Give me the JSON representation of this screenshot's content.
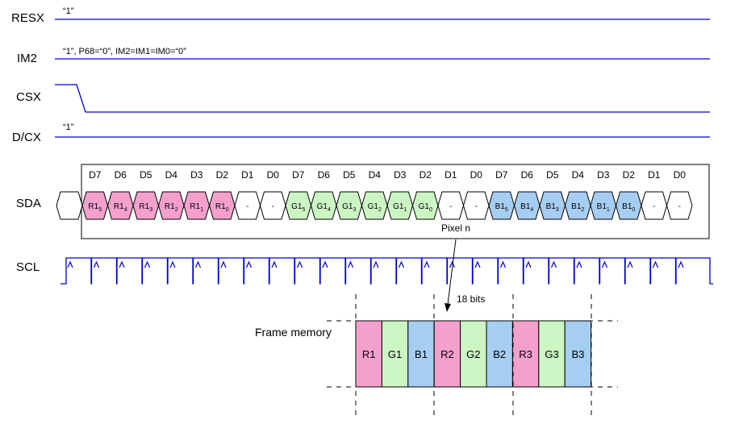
{
  "signals": {
    "resx": {
      "label": "RESX",
      "note": "“1”"
    },
    "im2": {
      "label": "IM2",
      "note": "“1”, P68=“0”, IM2=IM1=IM0=“0”"
    },
    "csx": {
      "label": "CSX"
    },
    "dcx": {
      "label": "D/CX",
      "note": "“1”"
    },
    "sda": {
      "label": "SDA"
    },
    "scl": {
      "label": "SCL"
    }
  },
  "bit_headers": [
    "D7",
    "D6",
    "D5",
    "D4",
    "D3",
    "D2",
    "D1",
    "D0",
    "D7",
    "D6",
    "D5",
    "D4",
    "D3",
    "D2",
    "D1",
    "D0",
    "D7",
    "D6",
    "D5",
    "D4",
    "D3",
    "D2",
    "D1",
    "D0"
  ],
  "sda_cells": [
    {
      "base": "R1",
      "sub": "5",
      "color": "#f4a0cc"
    },
    {
      "base": "R1",
      "sub": "4",
      "color": "#f4a0cc"
    },
    {
      "base": "R1",
      "sub": "3",
      "color": "#f4a0cc"
    },
    {
      "base": "R1",
      "sub": "2",
      "color": "#f4a0cc"
    },
    {
      "base": "R1",
      "sub": "1",
      "color": "#f4a0cc"
    },
    {
      "base": "R1",
      "sub": "0",
      "color": "#f4a0cc"
    },
    {
      "base": "-",
      "sub": "",
      "color": "#ffffff"
    },
    {
      "base": "-",
      "sub": "",
      "color": "#ffffff"
    },
    {
      "base": "G1",
      "sub": "5",
      "color": "#ccf5c4"
    },
    {
      "base": "G1",
      "sub": "4",
      "color": "#ccf5c4"
    },
    {
      "base": "G1",
      "sub": "3",
      "color": "#ccf5c4"
    },
    {
      "base": "G1",
      "sub": "2",
      "color": "#ccf5c4"
    },
    {
      "base": "G1",
      "sub": "1",
      "color": "#ccf5c4"
    },
    {
      "base": "G1",
      "sub": "0",
      "color": "#ccf5c4"
    },
    {
      "base": "-",
      "sub": "",
      "color": "#ffffff"
    },
    {
      "base": "-",
      "sub": "",
      "color": "#ffffff"
    },
    {
      "base": "B1",
      "sub": "5",
      "color": "#a6cdf2"
    },
    {
      "base": "B1",
      "sub": "4",
      "color": "#a6cdf2"
    },
    {
      "base": "B1",
      "sub": "3",
      "color": "#a6cdf2"
    },
    {
      "base": "B1",
      "sub": "2",
      "color": "#a6cdf2"
    },
    {
      "base": "B1",
      "sub": "1",
      "color": "#a6cdf2"
    },
    {
      "base": "B1",
      "sub": "0",
      "color": "#a6cdf2"
    },
    {
      "base": "-",
      "sub": "",
      "color": "#ffffff"
    },
    {
      "base": "-",
      "sub": "",
      "color": "#ffffff"
    }
  ],
  "pixel_label": "Pixel n",
  "bits_label": "18 bits",
  "frame_memory": {
    "title": "Frame memory",
    "cells": [
      {
        "label": "R1",
        "color": "#f4a0cc"
      },
      {
        "label": "G1",
        "color": "#ccf5c4"
      },
      {
        "label": "B1",
        "color": "#a6cdf2"
      },
      {
        "label": "R2",
        "color": "#f4a0cc"
      },
      {
        "label": "G2",
        "color": "#ccf5c4"
      },
      {
        "label": "B2",
        "color": "#a6cdf2"
      },
      {
        "label": "R3",
        "color": "#f4a0cc"
      },
      {
        "label": "G3",
        "color": "#ccf5c4"
      },
      {
        "label": "B3",
        "color": "#a6cdf2"
      }
    ]
  },
  "colors": {
    "signal_line": "#0000cc",
    "red": "#f4a0cc",
    "green": "#ccf5c4",
    "blue": "#a6cdf2"
  }
}
